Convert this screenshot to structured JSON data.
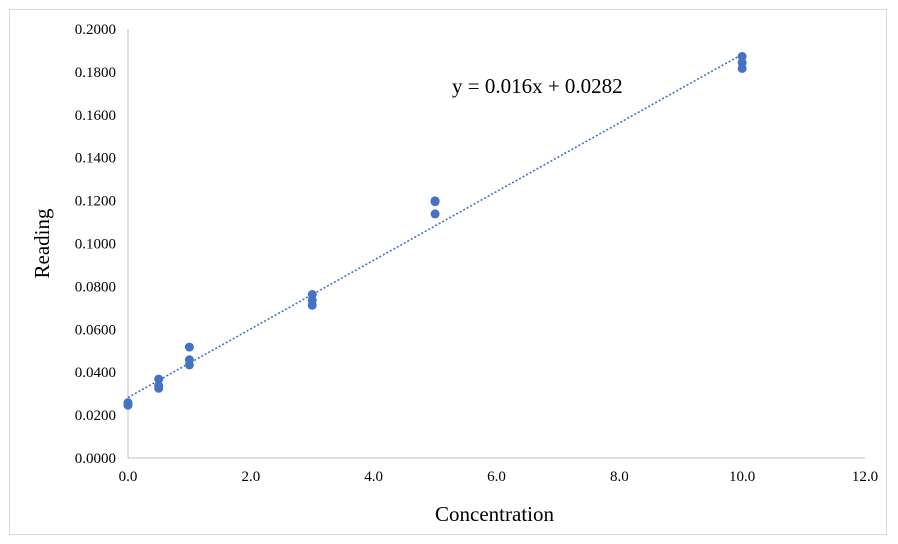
{
  "chart_data": {
    "type": "scatter",
    "title": "",
    "xlabel": "Concentration",
    "ylabel": "Reading",
    "xlim": [
      0,
      12
    ],
    "ylim": [
      0,
      0.2
    ],
    "xticks": [
      0,
      2,
      4,
      6,
      8,
      10,
      12
    ],
    "yticks": [
      0,
      0.02,
      0.04,
      0.06,
      0.08,
      0.1,
      0.12,
      0.14,
      0.16,
      0.18,
      0.2
    ],
    "xtick_labels": [
      "0.0",
      "2.0",
      "4.0",
      "6.0",
      "8.0",
      "10.0",
      "12.0"
    ],
    "ytick_labels": [
      "0.0000",
      "0.0200",
      "0.0400",
      "0.0600",
      "0.0800",
      "0.1000",
      "0.1200",
      "0.1400",
      "0.1600",
      "0.1800",
      "0.2000"
    ],
    "grid": false,
    "legend": "none",
    "marker_color": "#4472c4",
    "trendline_color": "#4472c4",
    "points": [
      {
        "x": 0,
        "y": 0.0246
      },
      {
        "x": 0,
        "y": 0.0252
      },
      {
        "x": 0,
        "y": 0.0258
      },
      {
        "x": 0.5,
        "y": 0.0325
      },
      {
        "x": 0.5,
        "y": 0.0337
      },
      {
        "x": 0.5,
        "y": 0.0368
      },
      {
        "x": 1,
        "y": 0.0434
      },
      {
        "x": 1,
        "y": 0.0458
      },
      {
        "x": 1,
        "y": 0.0517
      },
      {
        "x": 3,
        "y": 0.0712
      },
      {
        "x": 3,
        "y": 0.0735
      },
      {
        "x": 3,
        "y": 0.0762
      },
      {
        "x": 5,
        "y": 0.1138
      },
      {
        "x": 5,
        "y": 0.1195
      },
      {
        "x": 5,
        "y": 0.1199
      },
      {
        "x": 10,
        "y": 0.1816
      },
      {
        "x": 10,
        "y": 0.1843
      },
      {
        "x": 10,
        "y": 0.1872
      }
    ],
    "trendline": {
      "type": "linear",
      "slope": 0.016,
      "intercept": 0.0282,
      "x_range": [
        0,
        10
      ],
      "equation_label": "y = 0.016x + 0.0282"
    }
  }
}
